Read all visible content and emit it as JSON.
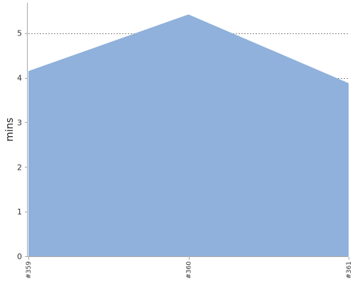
{
  "chart_data": {
    "type": "area",
    "x": [
      "#359",
      "#360",
      "#361"
    ],
    "series": [
      {
        "values": [
          4.15,
          5.42,
          3.88
        ]
      }
    ],
    "ylabel": "mins",
    "xlabel": "",
    "ylim": [
      0,
      5.68
    ],
    "yticks": [
      0,
      1,
      2,
      3,
      4,
      5
    ],
    "grid": true,
    "fill_color": "#8fb1db",
    "axis_color": "#aaaaaa",
    "grid_color": "#888888"
  }
}
